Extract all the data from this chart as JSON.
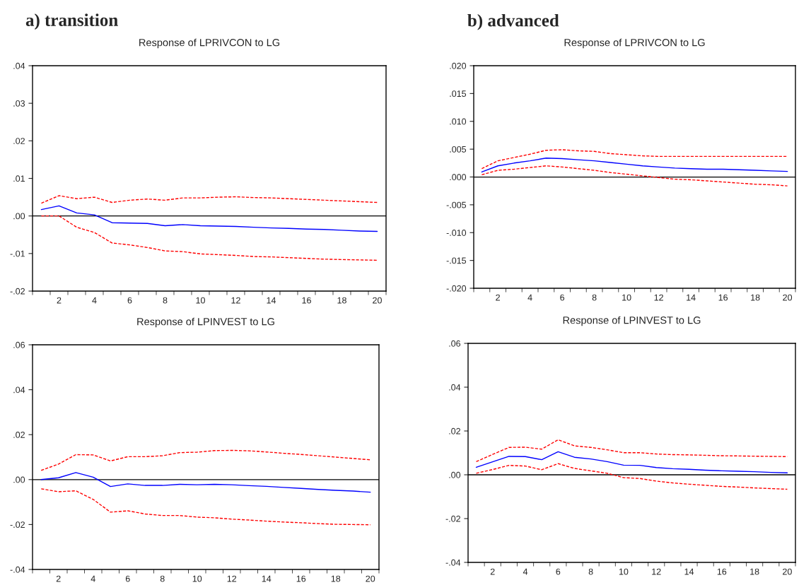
{
  "chart_data": [
    {
      "type": "line",
      "title": "Response of LPRIVCON to LG",
      "annotations": [
        "a) transition"
      ],
      "categories": [
        null,
        "2",
        null,
        "4",
        null,
        "6",
        null,
        "8",
        null,
        "10",
        null,
        "12",
        null,
        "14",
        null,
        "16",
        null,
        "18",
        null,
        "20"
      ],
      "series": [
        {
          "color": "#0000ff",
          "line_style": "solid",
          "values": [
            0.0017,
            0.0027,
            0.0008,
            0.0003,
            -0.0018,
            -0.0019,
            -0.002,
            -0.0026,
            -0.0023,
            -0.0026,
            -0.0027,
            -0.0028,
            -0.003,
            -0.0032,
            -0.0033,
            -0.0035,
            -0.0036,
            -0.0038,
            -0.004,
            -0.0041
          ]
        },
        {
          "color": "#ff0000",
          "line_style": "dashed",
          "values": [
            0.0034,
            0.0054,
            0.0046,
            0.005,
            0.0036,
            0.0042,
            0.0045,
            0.0042,
            0.0048,
            0.0048,
            0.005,
            0.0051,
            0.0049,
            0.0048,
            0.0046,
            0.0044,
            0.0042,
            0.004,
            0.0038,
            0.0036
          ]
        },
        {
          "color": "#ff0000",
          "line_style": "dashed",
          "values": [
            0.0,
            0.0,
            -0.003,
            -0.0044,
            -0.0072,
            -0.0077,
            -0.0084,
            -0.0093,
            -0.0095,
            -0.0101,
            -0.0103,
            -0.0105,
            -0.0108,
            -0.0109,
            -0.0111,
            -0.0113,
            -0.0115,
            -0.0116,
            -0.0117,
            -0.0118
          ]
        }
      ],
      "ylim": [
        -0.02,
        0.04
      ],
      "yticks": [
        {
          "value": -0.02,
          "label": "-.02"
        },
        {
          "value": -0.01,
          "label": "-.01"
        },
        {
          "value": 0,
          "label": ".00"
        },
        {
          "value": 0.01,
          "label": ".01"
        },
        {
          "value": 0.02,
          "label": ".02"
        },
        {
          "value": 0.03,
          "label": ".03"
        },
        {
          "value": 0.04,
          "label": ".04"
        }
      ],
      "ref_lines": [
        {
          "axis": "y",
          "value": 0,
          "color": "#000000"
        }
      ]
    },
    {
      "type": "line",
      "title": "Response of LPRIVCON to LG",
      "annotations": [
        "b) advanced"
      ],
      "categories": [
        null,
        "2",
        null,
        "4",
        null,
        "6",
        null,
        "8",
        null,
        "10",
        null,
        "12",
        null,
        "14",
        null,
        "16",
        null,
        "18",
        null,
        "20"
      ],
      "series": [
        {
          "color": "#0000ff",
          "line_style": "solid",
          "values": [
            0.0009,
            0.002,
            0.0025,
            0.0029,
            0.0034,
            0.0033,
            0.0031,
            0.0029,
            0.0026,
            0.0023,
            0.002,
            0.0018,
            0.0016,
            0.0015,
            0.0014,
            0.0014,
            0.0013,
            0.0012,
            0.0011,
            0.001
          ]
        },
        {
          "color": "#ff0000",
          "line_style": "dashed",
          "values": [
            0.0015,
            0.0029,
            0.0035,
            0.0041,
            0.0048,
            0.0049,
            0.0047,
            0.0046,
            0.0042,
            0.004,
            0.0038,
            0.0037,
            0.0037,
            0.0037,
            0.0037,
            0.0037,
            0.0037,
            0.0037,
            0.0037,
            0.0037
          ]
        },
        {
          "color": "#ff0000",
          "line_style": "dashed",
          "values": [
            0.0004,
            0.0012,
            0.0014,
            0.0017,
            0.002,
            0.0018,
            0.0015,
            0.0012,
            0.0008,
            0.0005,
            0.0002,
            -0.0001,
            -0.0004,
            -0.0005,
            -0.0007,
            -0.0009,
            -0.0011,
            -0.0013,
            -0.0014,
            -0.0016
          ]
        }
      ],
      "ylim": [
        -0.02,
        0.02
      ],
      "yticks": [
        {
          "value": -0.02,
          "label": "-.020"
        },
        {
          "value": -0.015,
          "label": "-.015"
        },
        {
          "value": -0.01,
          "label": "-.010"
        },
        {
          "value": -0.005,
          "label": "-.005"
        },
        {
          "value": 0,
          "label": ".000"
        },
        {
          "value": 0.005,
          "label": ".005"
        },
        {
          "value": 0.01,
          "label": ".010"
        },
        {
          "value": 0.015,
          "label": ".015"
        },
        {
          "value": 0.02,
          "label": ".020"
        }
      ],
      "ref_lines": [
        {
          "axis": "y",
          "value": 0,
          "color": "#000000"
        }
      ]
    },
    {
      "type": "line",
      "title": "Response of LPINVEST to LG",
      "categories": [
        null,
        "2",
        null,
        "4",
        null,
        "6",
        null,
        "8",
        null,
        "10",
        null,
        "12",
        null,
        "14",
        null,
        "16",
        null,
        "18",
        null,
        "20"
      ],
      "series": [
        {
          "color": "#0000ff",
          "line_style": "solid",
          "values": [
            0.0,
            0.0008,
            0.0031,
            0.0011,
            -0.0031,
            -0.0019,
            -0.0026,
            -0.0026,
            -0.0021,
            -0.0023,
            -0.0021,
            -0.0023,
            -0.0027,
            -0.003,
            -0.0035,
            -0.0039,
            -0.0044,
            -0.0048,
            -0.0051,
            -0.0056
          ]
        },
        {
          "color": "#ff0000",
          "line_style": "dashed",
          "values": [
            0.0041,
            0.0069,
            0.0111,
            0.011,
            0.0083,
            0.0102,
            0.0102,
            0.0106,
            0.012,
            0.0122,
            0.0129,
            0.013,
            0.0128,
            0.0123,
            0.0117,
            0.0112,
            0.0106,
            0.01,
            0.0094,
            0.0088
          ]
        },
        {
          "color": "#ff0000",
          "line_style": "dashed",
          "values": [
            -0.0041,
            -0.0054,
            -0.005,
            -0.0088,
            -0.0145,
            -0.0139,
            -0.0153,
            -0.016,
            -0.016,
            -0.0167,
            -0.017,
            -0.0176,
            -0.018,
            -0.0185,
            -0.0189,
            -0.0192,
            -0.0196,
            -0.0199,
            -0.02,
            -0.0201
          ]
        }
      ],
      "ylim": [
        -0.04,
        0.06
      ],
      "yticks": [
        {
          "value": -0.04,
          "label": "-.04"
        },
        {
          "value": -0.02,
          "label": "-.02"
        },
        {
          "value": 0,
          "label": ".00"
        },
        {
          "value": 0.02,
          "label": ".02"
        },
        {
          "value": 0.04,
          "label": ".04"
        },
        {
          "value": 0.06,
          "label": ".06"
        }
      ],
      "ref_lines": [
        {
          "axis": "y",
          "value": 0,
          "color": "#000000"
        }
      ]
    },
    {
      "type": "line",
      "title": "Response of LPINVEST to LG",
      "categories": [
        null,
        "2",
        null,
        "4",
        null,
        "6",
        null,
        "8",
        null,
        "10",
        null,
        "12",
        null,
        "14",
        null,
        "16",
        null,
        "18",
        null,
        "20"
      ],
      "series": [
        {
          "color": "#0000ff",
          "line_style": "solid",
          "values": [
            0.0034,
            0.0059,
            0.0084,
            0.0083,
            0.0069,
            0.0105,
            0.008,
            0.0072,
            0.006,
            0.0044,
            0.0043,
            0.0033,
            0.0028,
            0.0025,
            0.0021,
            0.0018,
            0.0016,
            0.0014,
            0.0011,
            0.0009
          ]
        },
        {
          "color": "#ff0000",
          "line_style": "dashed",
          "values": [
            0.006,
            0.0093,
            0.0125,
            0.0126,
            0.0117,
            0.016,
            0.0132,
            0.0125,
            0.0114,
            0.0101,
            0.0101,
            0.0095,
            0.0092,
            0.0091,
            0.0089,
            0.0087,
            0.0086,
            0.0085,
            0.0084,
            0.0083
          ]
        },
        {
          "color": "#ff0000",
          "line_style": "dashed",
          "values": [
            0.0007,
            0.0024,
            0.0043,
            0.004,
            0.0023,
            0.0051,
            0.0029,
            0.0018,
            0.0007,
            -0.0013,
            -0.0017,
            -0.0029,
            -0.0037,
            -0.0043,
            -0.0048,
            -0.0053,
            -0.0056,
            -0.006,
            -0.0063,
            -0.0066
          ]
        }
      ],
      "ylim": [
        -0.04,
        0.06
      ],
      "yticks": [
        {
          "value": -0.04,
          "label": "-.04"
        },
        {
          "value": -0.02,
          "label": "-.02"
        },
        {
          "value": 0,
          "label": ".00"
        },
        {
          "value": 0.02,
          "label": ".02"
        },
        {
          "value": 0.04,
          "label": ".04"
        },
        {
          "value": 0.06,
          "label": ".06"
        }
      ],
      "ref_lines": [
        {
          "axis": "y",
          "value": 0,
          "color": "#000000"
        }
      ]
    }
  ]
}
